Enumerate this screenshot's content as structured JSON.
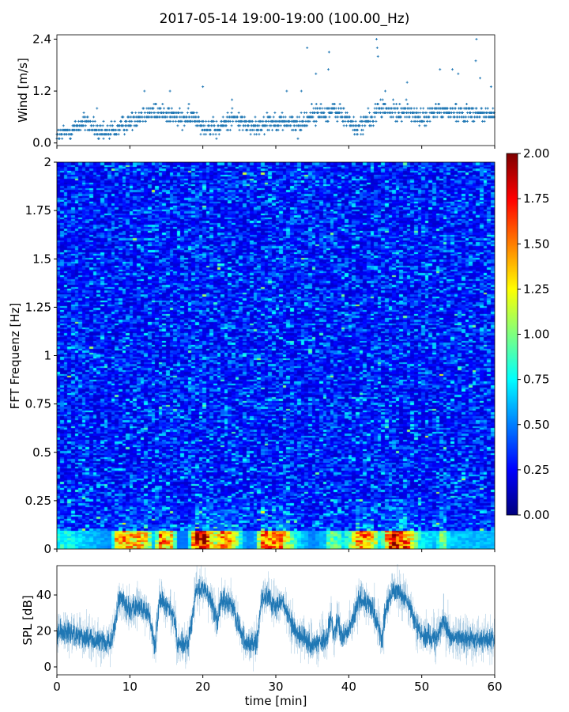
{
  "title": "2017-05-14 19:00-19:00 (100.00_Hz)",
  "chart_data": [
    {
      "type": "scatter",
      "name": "wind",
      "ylabel": "Wind [m/s]",
      "ylim": [
        -0.06,
        2.5
      ],
      "yticks": [
        "0.0",
        "1.2",
        "2.4"
      ],
      "ytick_values": [
        0.0,
        1.2,
        2.4
      ],
      "xlim": [
        0,
        60
      ],
      "marker": "+",
      "color": "#1f77b4",
      "mean_trend": {
        "t": [
          0,
          2,
          4,
          6,
          8,
          10,
          12,
          15,
          17,
          19,
          20,
          22,
          24,
          27,
          29,
          31,
          33,
          35,
          38,
          40,
          41,
          42,
          43,
          44,
          47,
          48,
          50,
          52,
          60
        ],
        "v": [
          0.15,
          0.3,
          0.5,
          0.2,
          0.3,
          0.5,
          0.7,
          0.7,
          0.55,
          0.6,
          0.4,
          0.3,
          0.6,
          0.35,
          0.5,
          0.5,
          0.4,
          0.65,
          0.75,
          0.55,
          0.3,
          0.5,
          0.5,
          0.8,
          0.7,
          0.75,
          0.55,
          0.75,
          0.65
        ]
      },
      "peaks": [
        [
          33.5,
          1.2
        ],
        [
          34.3,
          2.2
        ],
        [
          35.5,
          1.6
        ],
        [
          37.3,
          2.1
        ],
        [
          37.2,
          1.7
        ],
        [
          43.8,
          2.4
        ],
        [
          43.9,
          2.2
        ],
        [
          44,
          2.0
        ],
        [
          45,
          1.2
        ],
        [
          48,
          1.4
        ],
        [
          52.5,
          1.7
        ],
        [
          54.2,
          1.7
        ],
        [
          55,
          1.6
        ],
        [
          57.5,
          2.4
        ],
        [
          57.4,
          1.9
        ],
        [
          58,
          1.5
        ],
        [
          59.5,
          1.3
        ],
        [
          5.5,
          0.8
        ],
        [
          12,
          1.2
        ],
        [
          15.5,
          1.2
        ],
        [
          20,
          1.3
        ],
        [
          24,
          1.0
        ],
        [
          31.5,
          1.2
        ]
      ]
    },
    {
      "type": "heatmap",
      "name": "spectrogram",
      "ylabel": "FFT Frequenz [Hz]",
      "ylim": [
        0,
        2
      ],
      "yticks": [
        "0",
        "0.25",
        "0.5",
        "0.75",
        "1",
        "1.25",
        "1.5",
        "1.75",
        "2"
      ],
      "ytick_values": [
        0,
        0.25,
        0.5,
        0.75,
        1,
        1.25,
        1.5,
        1.75,
        2
      ],
      "xlim": [
        0,
        60
      ],
      "colormap": "jet",
      "clim": [
        0,
        2
      ],
      "colorbar_ticks": [
        "0.00",
        "0.25",
        "0.50",
        "0.75",
        "1.00",
        "1.25",
        "1.50",
        "1.75",
        "2.00"
      ],
      "colorbar_values": [
        0,
        0.25,
        0.5,
        0.75,
        1,
        1.25,
        1.5,
        1.75,
        2
      ],
      "time_bins": 60,
      "freq_bins": 200,
      "typical_level": 0.3,
      "low_freq_band_hz": 0.1,
      "low_freq_level": 1.6
    },
    {
      "type": "line",
      "name": "spl",
      "ylabel": "SPL [dB]",
      "xlabel": "time [min]",
      "xlim": [
        0,
        60
      ],
      "ylim": [
        -4.4,
        56.3
      ],
      "xticks": [
        "0",
        "10",
        "20",
        "30",
        "40",
        "50",
        "60"
      ],
      "xtick_values": [
        0,
        10,
        20,
        30,
        40,
        50,
        60
      ],
      "yticks": [
        "0",
        "20",
        "40"
      ],
      "ytick_values": [
        0,
        20,
        40
      ],
      "color": "#1f77b4",
      "envelope": {
        "t": [
          0,
          0.3,
          7.5,
          8.5,
          10,
          11,
          12.5,
          13.5,
          14,
          16,
          16.5,
          18,
          19,
          20,
          21,
          22,
          22.5,
          24,
          25,
          26,
          27.5,
          28,
          29,
          30,
          31,
          32,
          33,
          35,
          37,
          37.5,
          38,
          38.5,
          39,
          40,
          41,
          41.5,
          43,
          44,
          44.5,
          45,
          46,
          48,
          49,
          50,
          52,
          53,
          54,
          60
        ],
        "db": [
          17,
          20,
          13,
          38,
          32,
          34,
          30,
          12,
          38,
          30,
          12,
          12,
          42,
          44,
          38,
          25,
          38,
          34,
          22,
          12,
          15,
          38,
          38,
          34,
          36,
          25,
          18,
          12,
          16,
          28,
          18,
          26,
          17,
          20,
          32,
          38,
          34,
          24,
          14,
          30,
          44,
          38,
          25,
          18,
          16,
          26,
          16,
          15
        ]
      }
    }
  ]
}
